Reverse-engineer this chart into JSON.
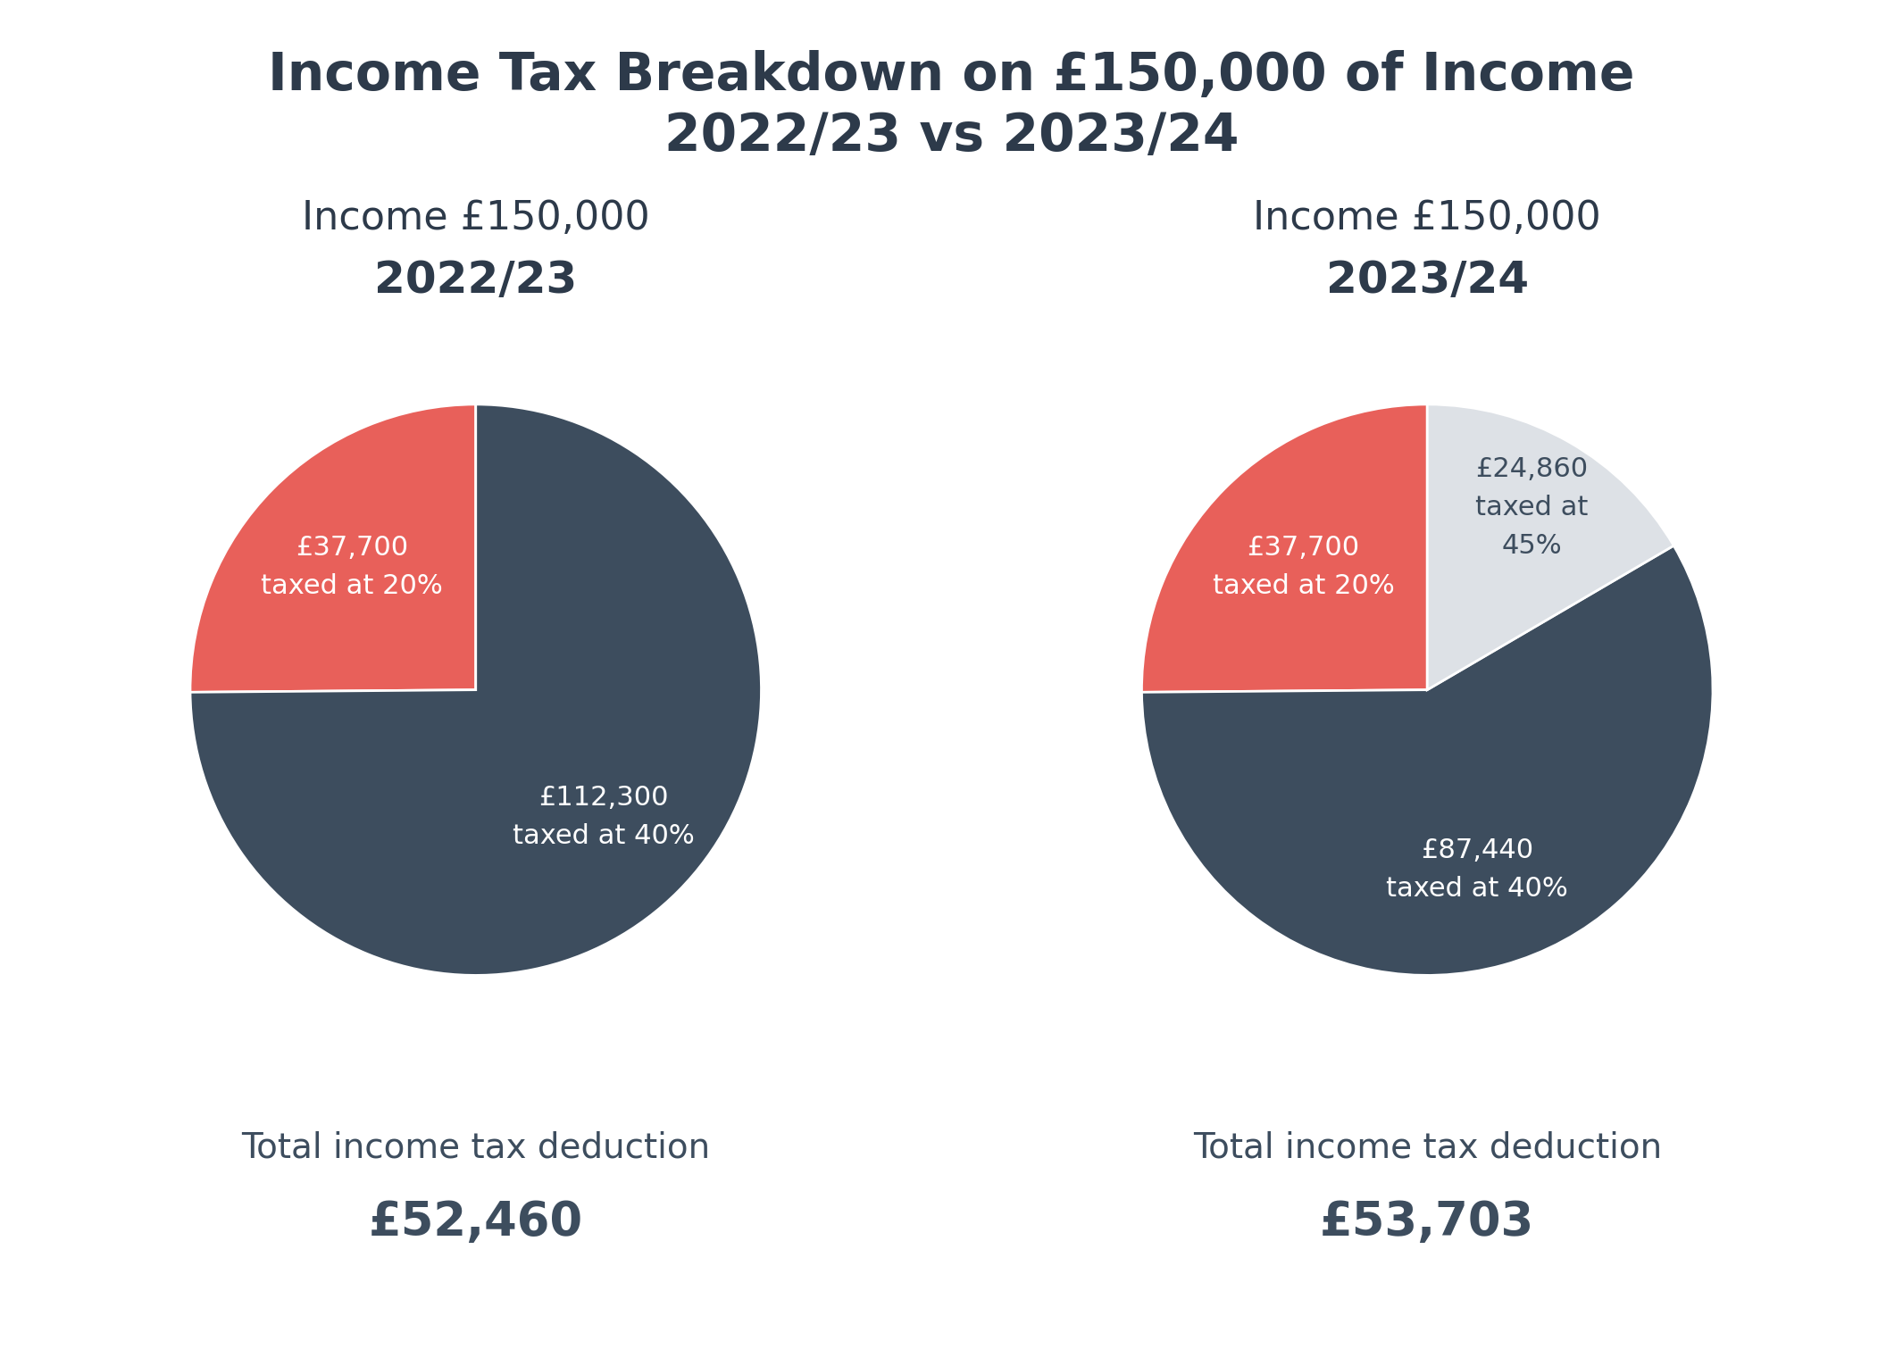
{
  "title_line1": "Income Tax Breakdown on £150,000 of Income",
  "title_line2": "2022/23 vs 2023/24",
  "title_color": "#2d3a4a",
  "title_fontsize": 42,
  "background_color": "#ffffff",
  "left_subtitle_line1": "Income £150,000",
  "left_subtitle_line2": "2022/23",
  "right_subtitle_line1": "Income £150,000",
  "right_subtitle_line2": "2023/24",
  "subtitle_fontsize1": 32,
  "subtitle_fontsize2": 36,
  "pie1_values": [
    37700,
    112300
  ],
  "pie1_colors": [
    "#e8605a",
    "#3d4d5e"
  ],
  "pie1_labels": [
    "£37,700\ntaxed at 20%",
    "£112,300\ntaxed at 40%"
  ],
  "pie1_label_colors": [
    "#ffffff",
    "#ffffff"
  ],
  "pie1_label_r": [
    0.58,
    0.6
  ],
  "pie2_values": [
    37700,
    87440,
    24860
  ],
  "pie2_colors": [
    "#e8605a",
    "#3d4d5e",
    "#dde1e6"
  ],
  "pie2_labels": [
    "£37,700\ntaxed at 20%",
    "£87,440\ntaxed at 40%",
    "£24,860\ntaxed at\n45%"
  ],
  "pie2_label_colors": [
    "#ffffff",
    "#ffffff",
    "#3d4d5e"
  ],
  "pie2_label_r": [
    0.58,
    0.62,
    0.7
  ],
  "label_fontsize": 22,
  "left_total_label": "Total income tax deduction",
  "left_total_value": "£52,460",
  "right_total_label": "Total income tax deduction",
  "right_total_value": "£53,703",
  "total_label_fontsize": 28,
  "total_value_fontsize": 38,
  "total_color": "#3d4d5e"
}
